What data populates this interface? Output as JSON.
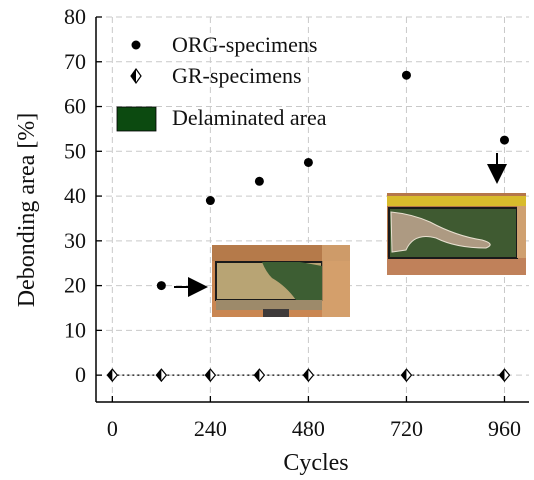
{
  "chart_data": {
    "type": "scatter",
    "xlabel": "Cycles",
    "ylabel": "Debonding area [%]",
    "xlim": [
      -40,
      1020
    ],
    "ylim": [
      -6,
      80
    ],
    "xticks": [
      0,
      240,
      480,
      720,
      960
    ],
    "yticks": [
      0,
      10,
      20,
      30,
      40,
      50,
      60,
      70,
      80
    ],
    "grid": true,
    "legend_position": "top-left",
    "series": [
      {
        "name": "ORG-specimens",
        "marker": "filled-circle",
        "color": "#000000",
        "x": [
          120,
          240,
          360,
          480,
          720,
          960
        ],
        "y": [
          20.0,
          39.0,
          43.3,
          47.5,
          67.0,
          52.5
        ]
      },
      {
        "name": "GR-specimens",
        "marker": "half-filled-diamond",
        "color": "#000000",
        "line": "dotted",
        "x": [
          0,
          120,
          240,
          360,
          480,
          720,
          960
        ],
        "y": [
          0,
          0,
          0,
          0,
          0,
          0,
          0
        ]
      }
    ],
    "legend": [
      {
        "label": "ORG-specimens"
      },
      {
        "label": "GR-specimens"
      },
      {
        "label": "Delaminated area",
        "color": "#0c4a10"
      }
    ]
  }
}
